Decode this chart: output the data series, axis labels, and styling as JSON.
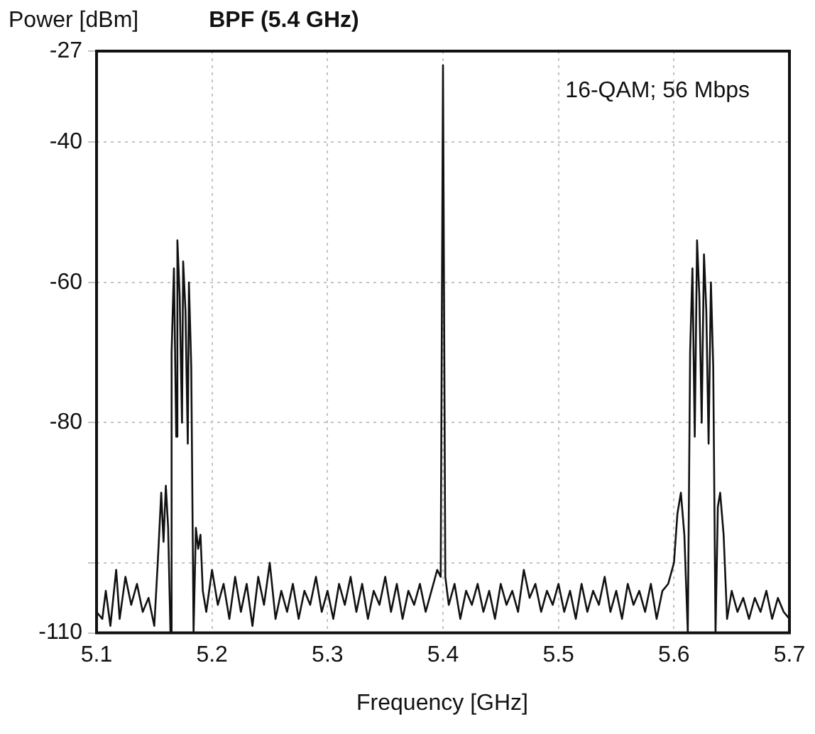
{
  "chart_data": {
    "type": "line",
    "title": "BPF (5.4 GHz)",
    "xlabel": "Frequency [GHz]",
    "ylabel": "Power [dBm]",
    "annotations": [
      "16-QAM; 56 Mbps"
    ],
    "xlim": [
      5.1,
      5.7
    ],
    "xticks": [
      5.1,
      5.2,
      5.3,
      5.4,
      5.5,
      5.6,
      5.7
    ],
    "ylim": [
      -110,
      -27
    ],
    "yticks": [
      -27,
      -40,
      -60,
      -80,
      {
        "value": -100,
        "label": null
      },
      -110
    ],
    "grid": true,
    "line_style": "solid",
    "marker": "none",
    "series": [
      {
        "color": "#111111",
        "x": [
          5.1,
          5.105,
          5.108,
          5.112,
          5.117,
          5.12,
          5.125,
          5.13,
          5.135,
          5.14,
          5.145,
          5.15,
          5.153,
          5.156,
          5.158,
          5.16,
          5.162,
          5.164,
          5.165,
          5.167,
          5.169,
          5.17,
          5.172,
          5.174,
          5.175,
          5.177,
          5.179,
          5.18,
          5.182,
          5.184,
          5.186,
          5.188,
          5.19,
          5.192,
          5.195,
          5.2,
          5.205,
          5.21,
          5.215,
          5.22,
          5.225,
          5.23,
          5.235,
          5.24,
          5.245,
          5.25,
          5.255,
          5.26,
          5.265,
          5.27,
          5.275,
          5.28,
          5.285,
          5.29,
          5.295,
          5.3,
          5.305,
          5.31,
          5.315,
          5.32,
          5.325,
          5.33,
          5.335,
          5.34,
          5.345,
          5.35,
          5.355,
          5.36,
          5.365,
          5.37,
          5.375,
          5.38,
          5.385,
          5.39,
          5.395,
          5.398,
          5.4,
          5.402,
          5.405,
          5.41,
          5.415,
          5.42,
          5.425,
          5.43,
          5.435,
          5.44,
          5.445,
          5.45,
          5.455,
          5.46,
          5.465,
          5.47,
          5.475,
          5.48,
          5.485,
          5.49,
          5.495,
          5.5,
          5.505,
          5.51,
          5.515,
          5.52,
          5.525,
          5.53,
          5.535,
          5.54,
          5.545,
          5.55,
          5.555,
          5.56,
          5.565,
          5.57,
          5.575,
          5.58,
          5.585,
          5.59,
          5.595,
          5.6,
          5.603,
          5.606,
          5.609,
          5.612,
          5.614,
          5.616,
          5.618,
          5.62,
          5.622,
          5.624,
          5.626,
          5.628,
          5.63,
          5.632,
          5.634,
          5.636,
          5.638,
          5.64,
          5.643,
          5.646,
          5.65,
          5.655,
          5.66,
          5.665,
          5.67,
          5.675,
          5.68,
          5.685,
          5.69,
          5.695,
          5.7
        ],
        "values": [
          -107,
          -108,
          -104,
          -109,
          -101,
          -108,
          -102,
          -106,
          -103,
          -107,
          -105,
          -109,
          -100,
          -90,
          -97,
          -89,
          -95,
          -110,
          -70,
          -58,
          -82,
          -54,
          -62,
          -80,
          -57,
          -64,
          -83,
          -60,
          -72,
          -110,
          -95,
          -98,
          -96,
          -104,
          -107,
          -101,
          -106,
          -103,
          -108,
          -102,
          -107,
          -103,
          -109,
          -102,
          -106,
          -100,
          -108,
          -104,
          -107,
          -103,
          -108,
          -104,
          -106,
          -102,
          -107,
          -104,
          -108,
          -103,
          -106,
          -102,
          -107,
          -103,
          -108,
          -104,
          -106,
          -102,
          -107,
          -103,
          -108,
          -104,
          -106,
          -103,
          -107,
          -104,
          -101,
          -102,
          -29,
          -102,
          -106,
          -103,
          -108,
          -104,
          -106,
          -103,
          -107,
          -104,
          -108,
          -103,
          -106,
          -104,
          -107,
          -101,
          -105,
          -103,
          -107,
          -104,
          -106,
          -103,
          -107,
          -104,
          -108,
          -103,
          -107,
          -104,
          -106,
          -102,
          -107,
          -104,
          -108,
          -103,
          -106,
          -104,
          -107,
          -103,
          -108,
          -104,
          -103,
          -100,
          -93,
          -90,
          -96,
          -110,
          -70,
          -58,
          -82,
          -54,
          -62,
          -80,
          -56,
          -64,
          -83,
          -60,
          -72,
          -110,
          -92,
          -90,
          -96,
          -108,
          -104,
          -107,
          -105,
          -108,
          -105,
          -107,
          -104,
          -108,
          -105,
          -107,
          -108
        ]
      }
    ]
  }
}
